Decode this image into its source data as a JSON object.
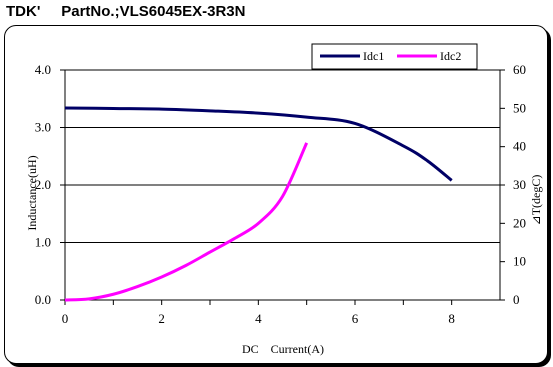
{
  "header": {
    "maker": "TDK'",
    "partno": "PartNo.;VLS6045EX-3R3N"
  },
  "chart_data": {
    "type": "line",
    "xlabel": "DC    Current(A)",
    "ylabel_left": "Inductance(uH)",
    "ylabel_right": "⊿T(degC)",
    "xlim": [
      0,
      9
    ],
    "ylim_left": [
      0,
      4
    ],
    "ylim_right": [
      0,
      60
    ],
    "x_ticks": [
      "0",
      "2",
      "4",
      "6",
      "8"
    ],
    "y_left_ticks": [
      "0.0",
      "1.0",
      "2.0",
      "3.0",
      "4.0"
    ],
    "y_right_ticks": [
      "0",
      "10",
      "20",
      "30",
      "40",
      "50",
      "60"
    ],
    "legend_position": "top-right",
    "series": [
      {
        "name": "Idc1",
        "axis": "left",
        "color": "#000066",
        "points": [
          [
            0,
            3.34
          ],
          [
            1,
            3.33
          ],
          [
            2,
            3.32
          ],
          [
            3,
            3.29
          ],
          [
            4,
            3.25
          ],
          [
            5,
            3.18
          ],
          [
            6,
            3.07
          ],
          [
            7,
            2.68
          ],
          [
            7.5,
            2.42
          ],
          [
            8,
            2.08
          ]
        ]
      },
      {
        "name": "Idc2",
        "axis": "right",
        "color": "#ff00ff",
        "points": [
          [
            0,
            0
          ],
          [
            0.5,
            0.3
          ],
          [
            1,
            1.5
          ],
          [
            1.5,
            3.5
          ],
          [
            2,
            6
          ],
          [
            2.5,
            9
          ],
          [
            3,
            12.5
          ],
          [
            3.5,
            16
          ],
          [
            4,
            20
          ],
          [
            4.5,
            27
          ],
          [
            5,
            41
          ]
        ]
      }
    ]
  }
}
